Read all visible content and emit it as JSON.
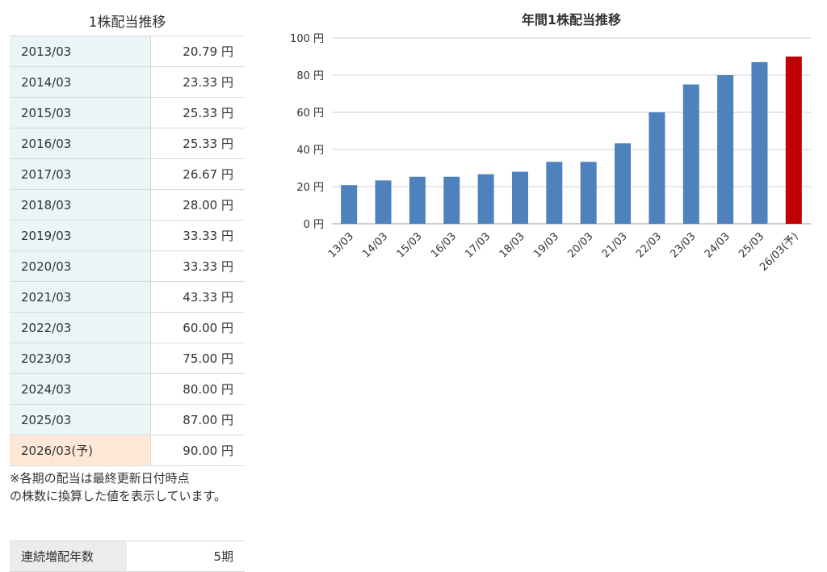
{
  "table": {
    "title": "1株配当推移",
    "rows": [
      {
        "period": "2013/03",
        "value": "20.79 円"
      },
      {
        "period": "2014/03",
        "value": "23.33 円"
      },
      {
        "period": "2015/03",
        "value": "25.33 円"
      },
      {
        "period": "2016/03",
        "value": "25.33 円"
      },
      {
        "period": "2017/03",
        "value": "26.67 円"
      },
      {
        "period": "2018/03",
        "value": "28.00 円"
      },
      {
        "period": "2019/03",
        "value": "33.33 円"
      },
      {
        "period": "2020/03",
        "value": "33.33 円"
      },
      {
        "period": "2021/03",
        "value": "43.33 円"
      },
      {
        "period": "2022/03",
        "value": "60.00 円"
      },
      {
        "period": "2023/03",
        "value": "75.00 円"
      },
      {
        "period": "2024/03",
        "value": "80.00 円"
      },
      {
        "period": "2025/03",
        "value": "87.00 円"
      },
      {
        "period": "2026/03(予)",
        "value": "90.00 円",
        "forecast": true
      }
    ],
    "note_line1": "※各期の配当は最終更新日付時点",
    "note_line2": "の株数に換算した値を表示しています。",
    "forecast_color": "#fde8d8",
    "period_color": "#e9f5f7"
  },
  "streak": {
    "label": "連続増配年数",
    "value": "5期"
  },
  "chart_data": {
    "type": "bar",
    "title": "年間1株配当推移",
    "categories": [
      "13/03",
      "14/03",
      "15/03",
      "16/03",
      "17/03",
      "18/03",
      "19/03",
      "20/03",
      "21/03",
      "22/03",
      "23/03",
      "24/03",
      "25/03",
      "26/03(予)"
    ],
    "values": [
      20.79,
      23.33,
      25.33,
      25.33,
      26.67,
      28.0,
      33.33,
      33.33,
      43.33,
      60.0,
      75.0,
      80.0,
      87.0,
      90.0
    ],
    "forecast_index": 13,
    "ylim": [
      0,
      100
    ],
    "yticks": [
      0,
      20,
      40,
      60,
      80,
      100
    ],
    "ytick_labels": [
      "0 円",
      "20 円",
      "40 円",
      "60 円",
      "80 円",
      "100 円"
    ],
    "xlabel": "",
    "ylabel": "",
    "grid": true,
    "bar_color": "#4f81bd",
    "forecast_color": "#c00000"
  }
}
